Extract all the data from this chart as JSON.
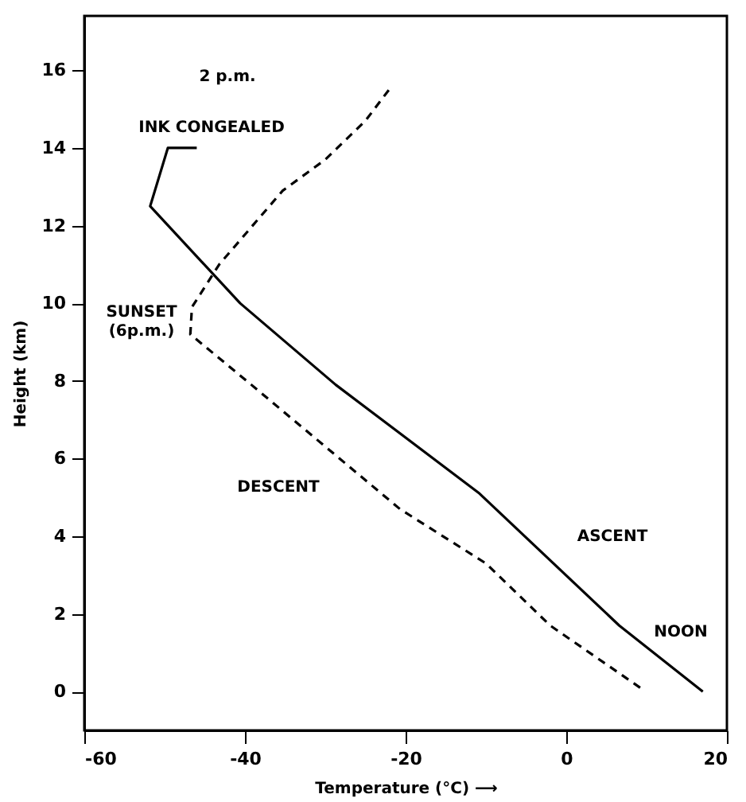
{
  "chart_data": {
    "type": "line",
    "xlabel": "Temperature (°C) ⟶",
    "ylabel": "Height (km)",
    "xlim": [
      -60,
      20
    ],
    "ylim": [
      -1,
      17.4
    ],
    "xticks": [
      -60,
      -40,
      -20,
      0,
      20
    ],
    "yticks": [
      0,
      2,
      4,
      6,
      8,
      10,
      12,
      14,
      16
    ],
    "grid": false,
    "marker": "none",
    "series": [
      {
        "color": "#000000",
        "line_style": "solid",
        "x": [
          17,
          6.6,
          -10.8,
          -28.7,
          -40.6,
          -51.8,
          -49.6,
          -46
        ],
        "values": [
          0,
          1.7,
          5.1,
          7.9,
          10,
          12.5,
          14,
          14
        ]
      },
      {
        "color": "#000000",
        "line_style": "dashed",
        "x": [
          9.2,
          -2,
          -10,
          -20.7,
          -39.2,
          -46.8,
          -46.6,
          -43.2,
          -35.3,
          -30,
          -25,
          -21.7
        ],
        "values": [
          0.1,
          1.7,
          3.3,
          4.7,
          7.9,
          9.2,
          9.9,
          11,
          12.9,
          13.7,
          14.7,
          15.6
        ]
      }
    ],
    "annotations": [
      "2 p.m.",
      "INK CONGEALED",
      "SUNSET (6p.m.)",
      "DESCENT",
      "ASCENT",
      "NOON"
    ]
  }
}
